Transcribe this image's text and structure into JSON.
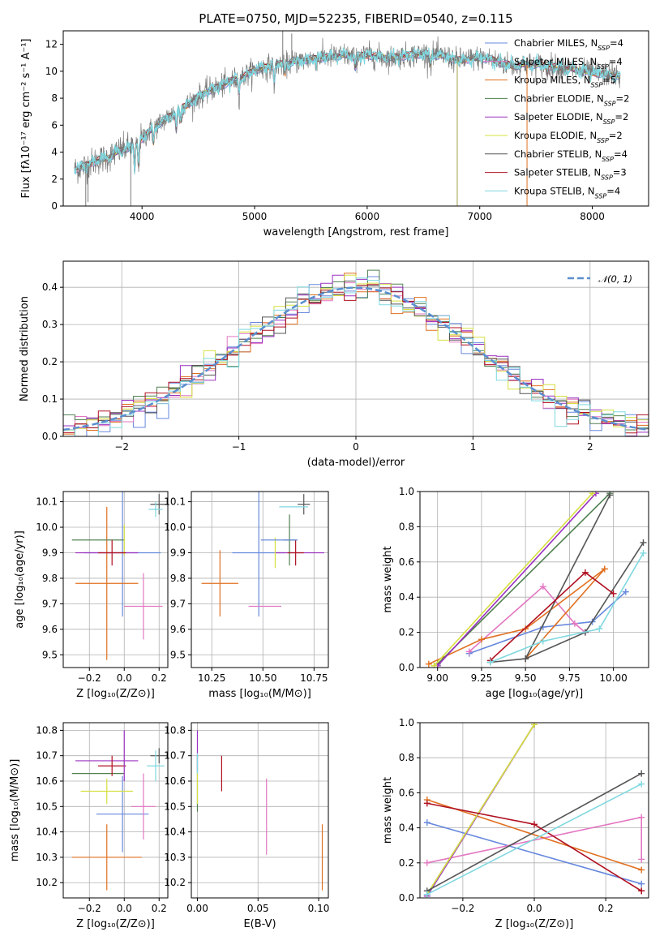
{
  "colors": {
    "Chabrier MILES": "#6688dd",
    "Salpeter MILES": "#e377c2",
    "Kroupa MILES": "#e07020",
    "Chabrier ELODIE": "#508050",
    "Salpeter ELODIE": "#9b30c0",
    "Kroupa ELODIE": "#d6e040",
    "Chabrier STELIB": "#555555",
    "Salpeter STELIB": "#b01020",
    "Kroupa STELIB": "#7fd8e0",
    "normal": "#5b8fd0"
  },
  "chart_data": [
    {
      "id": "spectrum",
      "type": "line",
      "title": "PLATE=0750, MJD=52235, FIBERID=0540, z=0.115",
      "xlabel": "wavelength [Angstrom, rest frame]",
      "ylabel": "Flux [fλ10⁻¹⁷ erg cm⁻² s⁻¹ A⁻¹]",
      "xlim": [
        3300,
        8500
      ],
      "ylim": [
        0,
        13
      ],
      "xticks": [
        "4000",
        "5000",
        "6000",
        "7000",
        "8000"
      ],
      "yticks": [
        "0",
        "2",
        "4",
        "6",
        "8",
        "10",
        "12"
      ],
      "legend_position": "right",
      "legend": [
        {
          "label": "Chabrier MILES, N",
          "sub": "SSP",
          "eq": "=4",
          "color_key": "Chabrier MILES"
        },
        {
          "label": "Salpeter MILES, N",
          "sub": "SSP",
          "eq": "=4",
          "color_key": "Salpeter MILES"
        },
        {
          "label": "Kroupa MILES, N",
          "sub": "SSP",
          "eq": "=5",
          "color_key": "Kroupa MILES"
        },
        {
          "label": "Chabrier ELODIE, N",
          "sub": "SSP",
          "eq": "=2",
          "color_key": "Chabrier ELODIE"
        },
        {
          "label": "Salpeter ELODIE, N",
          "sub": "SSP",
          "eq": "=2",
          "color_key": "Salpeter ELODIE"
        },
        {
          "label": "Kroupa ELODIE, N",
          "sub": "SSP",
          "eq": "=2",
          "color_key": "Kroupa ELODIE"
        },
        {
          "label": "Chabrier STELIB, N",
          "sub": "SSP",
          "eq": "=4",
          "color_key": "Chabrier STELIB"
        },
        {
          "label": "Salpeter STELIB, N",
          "sub": "SSP",
          "eq": "=3",
          "color_key": "Salpeter STELIB"
        },
        {
          "label": "Kroupa STELIB, N",
          "sub": "SSP",
          "eq": "=4",
          "color_key": "Kroupa STELIB"
        }
      ],
      "continuum": [
        [
          3400,
          2.7
        ],
        [
          3500,
          3.0
        ],
        [
          3600,
          3.4
        ],
        [
          3700,
          3.6
        ],
        [
          3800,
          4.1
        ],
        [
          3900,
          4.4
        ],
        [
          4000,
          5.0
        ],
        [
          4100,
          5.8
        ],
        [
          4200,
          6.4
        ],
        [
          4300,
          7.0
        ],
        [
          4400,
          7.5
        ],
        [
          4500,
          8.1
        ],
        [
          4600,
          8.6
        ],
        [
          4700,
          8.9
        ],
        [
          4800,
          9.3
        ],
        [
          4900,
          9.6
        ],
        [
          5000,
          10.1
        ],
        [
          5100,
          10.3
        ],
        [
          5200,
          10.5
        ],
        [
          5300,
          10.6
        ],
        [
          5400,
          10.8
        ],
        [
          5500,
          10.9
        ],
        [
          5600,
          11.0
        ],
        [
          5700,
          11.1
        ],
        [
          5800,
          11.2
        ],
        [
          5900,
          11.1
        ],
        [
          6000,
          11.2
        ],
        [
          6100,
          11.1
        ],
        [
          6200,
          11.0
        ],
        [
          6300,
          11.1
        ],
        [
          6400,
          11.2
        ],
        [
          6500,
          11.3
        ],
        [
          6600,
          11.2
        ],
        [
          6700,
          11.1
        ],
        [
          6800,
          10.8
        ],
        [
          6900,
          10.9
        ],
        [
          7000,
          11.0
        ],
        [
          7100,
          10.9
        ],
        [
          7200,
          10.6
        ],
        [
          7300,
          10.4
        ],
        [
          7400,
          10.5
        ],
        [
          7500,
          10.5
        ],
        [
          7600,
          10.4
        ],
        [
          7700,
          10.3
        ],
        [
          7800,
          10.2
        ],
        [
          7900,
          10.0
        ],
        [
          8000,
          9.9
        ],
        [
          8100,
          9.8
        ],
        [
          8200,
          9.7
        ],
        [
          8250,
          9.6
        ]
      ],
      "absorption_lines": [
        [
          3934,
          2.2
        ],
        [
          3969,
          2.0
        ],
        [
          4102,
          1.2
        ],
        [
          4304,
          1.5
        ],
        [
          4341,
          1.0
        ],
        [
          4861,
          1.2
        ],
        [
          5175,
          1.4
        ],
        [
          5270,
          0.8
        ],
        [
          5895,
          0.9
        ],
        [
          6563,
          0.8
        ],
        [
          7600,
          0.6
        ]
      ],
      "spikes": [
        [
          3500,
          0.0
        ],
        [
          3520,
          0.3
        ],
        [
          3900,
          0.0
        ],
        [
          5250,
          13.0
        ],
        [
          5330,
          12.8
        ],
        [
          6800,
          0.0
        ],
        [
          7420,
          0.0
        ]
      ]
    },
    {
      "id": "residuals",
      "type": "histogram",
      "xlabel": "(data-model)/error",
      "ylabel": "Normed distribution",
      "xlim": [
        -2.5,
        2.5
      ],
      "ylim": [
        0,
        0.47
      ],
      "xticks": [
        "−2",
        "−1",
        "0",
        "1",
        "2"
      ],
      "xtick_values": [
        -2,
        -1,
        0,
        1,
        2
      ],
      "yticks": [
        "0.0",
        "0.1",
        "0.2",
        "0.3",
        "0.4"
      ],
      "ytick_values": [
        0,
        0.1,
        0.2,
        0.3,
        0.4
      ],
      "grid": true,
      "legend": {
        "label": "𝒩(0, 1)",
        "position": "top-right"
      },
      "bin_width": 0.1
    },
    {
      "id": "age-Z",
      "type": "errorbar",
      "xlabel": "Z [log₁₀(Z/Z⊙)]",
      "ylabel": "age  [log₁₀(age/yr)]",
      "xlim": [
        -0.35,
        0.25
      ],
      "ylim": [
        9.45,
        10.14
      ],
      "xticks": [
        "−0.2",
        "0.0",
        "0.2"
      ],
      "xtick_values": [
        -0.2,
        0,
        0.2
      ],
      "yticks": [
        "9.5",
        "9.6",
        "9.7",
        "9.8",
        "9.9",
        "10.0",
        "10.1"
      ],
      "ytick_values": [
        9.5,
        9.6,
        9.7,
        9.8,
        9.9,
        10.0,
        10.1
      ],
      "grid": true,
      "points": [
        {
          "k": "Chabrier MILES",
          "x": -0.01,
          "y": 9.9,
          "xe": 0.22,
          "ye": 0.25
        },
        {
          "k": "Salpeter MILES",
          "x": 0.11,
          "y": 9.69,
          "xe": 0.11,
          "ye": 0.13
        },
        {
          "k": "Kroupa MILES",
          "x": -0.1,
          "y": 9.78,
          "xe": 0.18,
          "ye": 0.3
        },
        {
          "k": "Chabrier ELODIE",
          "x": -0.15,
          "y": 9.95,
          "xe": 0.15,
          "ye": 0.0
        },
        {
          "k": "Salpeter ELODIE",
          "x": -0.1,
          "y": 9.9,
          "xe": 0.18,
          "ye": 0.0
        },
        {
          "k": "Kroupa ELODIE",
          "x": 0.0,
          "y": 9.95,
          "xe": 0.0,
          "ye": 0.06
        },
        {
          "k": "Chabrier STELIB",
          "x": 0.2,
          "y": 10.09,
          "xe": 0.05,
          "ye": 0.04
        },
        {
          "k": "Salpeter STELIB",
          "x": -0.07,
          "y": 9.9,
          "xe": 0.08,
          "ye": 0.05
        },
        {
          "k": "Kroupa STELIB",
          "x": 0.18,
          "y": 10.07,
          "xe": 0.04,
          "ye": 0.03
        }
      ]
    },
    {
      "id": "age-mass",
      "type": "errorbar",
      "xlabel": "mass [log₁₀(M/M⊙)]",
      "ylabel": "",
      "xlim": [
        10.15,
        10.82
      ],
      "ylim": [
        9.45,
        10.14
      ],
      "xticks": [
        "10.25",
        "10.50",
        "10.75"
      ],
      "xtick_values": [
        10.25,
        10.5,
        10.75
      ],
      "yticks": [
        "9.5",
        "9.6",
        "9.7",
        "9.8",
        "9.9",
        "10.0",
        "10.1"
      ],
      "ytick_values": [
        9.5,
        9.6,
        9.7,
        9.8,
        9.9,
        10.0,
        10.1
      ],
      "grid": true,
      "points": [
        {
          "k": "Chabrier MILES",
          "x": 10.48,
          "y": 9.9,
          "xe": 0.13,
          "ye": 0.25
        },
        {
          "k": "Salpeter MILES",
          "x": 10.51,
          "y": 9.69,
          "xe": 0.08,
          "ye": 0.0
        },
        {
          "k": "Kroupa MILES",
          "x": 10.29,
          "y": 9.78,
          "xe": 0.09,
          "ye": 0.13
        },
        {
          "k": "Chabrier ELODIE",
          "x": 10.63,
          "y": 9.95,
          "xe": 0.03,
          "ye": 0.1
        },
        {
          "k": "Salpeter ELODIE",
          "x": 10.68,
          "y": 9.9,
          "xe": 0.12,
          "ye": 0.0
        },
        {
          "k": "Kroupa ELODIE",
          "x": 10.56,
          "y": 9.9,
          "xe": 0.0,
          "ye": 0.06
        },
        {
          "k": "Chabrier STELIB",
          "x": 10.7,
          "y": 10.09,
          "xe": 0.03,
          "ye": 0.04
        },
        {
          "k": "Salpeter STELIB",
          "x": 10.66,
          "y": 9.9,
          "xe": 0.04,
          "ye": 0.05
        },
        {
          "k": "Kroupa STELIB",
          "x": 10.65,
          "y": 10.08,
          "xe": 0.07,
          "ye": 0.0
        },
        {
          "k": "Chabrier MILES",
          "x": 10.58,
          "y": 9.95,
          "xe": 0.09,
          "ye": 0.0
        }
      ]
    },
    {
      "id": "weight-age",
      "type": "line",
      "xlabel": "age  [log₁₀(age/yr)]",
      "ylabel": "mass weight",
      "xlim": [
        8.9,
        10.2
      ],
      "ylim": [
        0,
        1.0
      ],
      "xticks": [
        "9.00",
        "9.25",
        "9.50",
        "9.75",
        "10.00"
      ],
      "xtick_values": [
        9.0,
        9.25,
        9.5,
        9.75,
        10.0
      ],
      "yticks": [
        "0.0",
        "0.2",
        "0.4",
        "0.6",
        "0.8",
        "1.0"
      ],
      "ytick_values": [
        0,
        0.2,
        0.4,
        0.6,
        0.8,
        1.0
      ],
      "grid": true,
      "series": [
        {
          "k": "Chabrier MILES",
          "x": [
            9.18,
            9.6,
            9.88,
            10.07
          ],
          "y": [
            0.08,
            0.23,
            0.26,
            0.43
          ]
        },
        {
          "k": "Salpeter MILES",
          "x": [
            9.18,
            9.6,
            9.78,
            9.84
          ],
          "y": [
            0.09,
            0.46,
            0.25,
            0.2
          ]
        },
        {
          "k": "Kroupa MILES",
          "x": [
            8.95,
            9.25,
            9.5,
            9.95
          ],
          "y": [
            0.02,
            0.16,
            0.22,
            0.56
          ],
          "x2": [
            9.5,
            9.95
          ],
          "y2": [
            0.05,
            0.56
          ]
        },
        {
          "k": "Chabrier ELODIE",
          "x": [
            9.0,
            9.98
          ],
          "y": [
            0.02,
            0.99
          ]
        },
        {
          "k": "Salpeter ELODIE",
          "x": [
            9.0,
            9.9
          ],
          "y": [
            0.01,
            0.99
          ]
        },
        {
          "k": "Kroupa ELODIE",
          "x": [
            8.98,
            9.88
          ],
          "y": [
            0.01,
            0.99
          ]
        },
        {
          "k": "Chabrier STELIB",
          "x": [
            9.3,
            9.5,
            9.84,
            10.17
          ],
          "y": [
            0.03,
            0.05,
            0.2,
            0.71
          ],
          "x2": [
            9.5,
            9.98
          ],
          "y2": [
            0.05,
            0.98
          ]
        },
        {
          "k": "Salpeter STELIB",
          "x": [
            9.3,
            9.84,
            10.0
          ],
          "y": [
            0.04,
            0.54,
            0.42
          ]
        },
        {
          "k": "Kroupa STELIB",
          "x": [
            9.3,
            9.6,
            9.92,
            10.17
          ],
          "y": [
            0.03,
            0.15,
            0.22,
            0.65
          ]
        }
      ]
    },
    {
      "id": "mass-Z",
      "type": "errorbar",
      "xlabel": "Z [log₁₀(Z/Z⊙)]",
      "ylabel": "mass [log₁₀(M/M⊙)]",
      "xlim": [
        -0.35,
        0.25
      ],
      "ylim": [
        10.14,
        10.83
      ],
      "xticks": [
        "−0.2",
        "0.0",
        "0.2"
      ],
      "xtick_values": [
        -0.2,
        0,
        0.2
      ],
      "yticks": [
        "10.2",
        "10.3",
        "10.4",
        "10.5",
        "10.6",
        "10.7",
        "10.8"
      ],
      "ytick_values": [
        10.2,
        10.3,
        10.4,
        10.5,
        10.6,
        10.7,
        10.8
      ],
      "grid": true,
      "points": [
        {
          "k": "Chabrier MILES",
          "x": -0.01,
          "y": 10.47,
          "xe": 0.15,
          "ye": 0.15
        },
        {
          "k": "Salpeter MILES",
          "x": 0.11,
          "y": 10.5,
          "xe": 0.07,
          "ye": 0.13
        },
        {
          "k": "Kroupa MILES",
          "x": -0.1,
          "y": 10.3,
          "xe": 0.2,
          "ye": 0.13
        },
        {
          "k": "Chabrier ELODIE",
          "x": -0.15,
          "y": 10.63,
          "xe": 0.15,
          "ye": 0.0
        },
        {
          "k": "Salpeter ELODIE",
          "x": -0.1,
          "y": 10.68,
          "xe": 0.18,
          "ye": 0.0
        },
        {
          "k": "Kroupa ELODIE",
          "x": -0.1,
          "y": 10.56,
          "xe": 0.15,
          "ye": 0.05
        },
        {
          "k": "Chabrier STELIB",
          "x": 0.2,
          "y": 10.7,
          "xe": 0.05,
          "ye": 0.03
        },
        {
          "k": "Salpeter STELIB",
          "x": -0.07,
          "y": 10.66,
          "xe": 0.08,
          "ye": 0.04
        },
        {
          "k": "Kroupa STELIB",
          "x": 0.18,
          "y": 10.66,
          "xe": 0.05,
          "ye": 0.06
        },
        {
          "k": "Salpeter ELODIE",
          "x": 0.0,
          "y": 10.7,
          "xe": 0.0,
          "ye": 0.1
        }
      ]
    },
    {
      "id": "mass-ebv",
      "type": "errorbar",
      "xlabel": "E(B-V)",
      "ylabel": "",
      "xlim": [
        -0.005,
        0.108
      ],
      "ylim": [
        10.14,
        10.83
      ],
      "xticks": [
        "0.00",
        "0.05",
        "0.10"
      ],
      "xtick_values": [
        0,
        0.05,
        0.1
      ],
      "yticks": [
        "10.2",
        "10.3",
        "10.4",
        "10.5",
        "10.6",
        "10.7",
        "10.8"
      ],
      "ytick_values": [
        10.2,
        10.3,
        10.4,
        10.5,
        10.6,
        10.7,
        10.8
      ],
      "grid": true,
      "points": [
        {
          "k": "Chabrier ELODIE",
          "x": 0.0,
          "y": 10.59,
          "xe": 0.0,
          "ye": 0.11
        },
        {
          "k": "Salpeter ELODIE",
          "x": 0.0,
          "y": 10.72,
          "xe": 0.0,
          "ye": 0.08
        },
        {
          "k": "Kroupa ELODIE",
          "x": 0.0,
          "y": 10.57,
          "xe": 0.0,
          "ye": 0.06
        },
        {
          "k": "Kroupa STELIB",
          "x": 0.0,
          "y": 10.67,
          "xe": 0.0,
          "ye": 0.04
        },
        {
          "k": "Salpeter STELIB",
          "x": 0.02,
          "y": 10.63,
          "xe": 0.0,
          "ye": 0.07
        },
        {
          "k": "Salpeter MILES",
          "x": 0.057,
          "y": 10.46,
          "xe": 0.0,
          "ye": 0.15
        },
        {
          "k": "Kroupa MILES",
          "x": 0.103,
          "y": 10.3,
          "xe": 0.0,
          "ye": 0.13
        }
      ]
    },
    {
      "id": "weight-Z",
      "type": "line",
      "xlabel": "Z [log₁₀(Z/Z⊙)]",
      "ylabel": "mass weight",
      "xlim": [
        -0.32,
        0.32
      ],
      "ylim": [
        0,
        1.0
      ],
      "xticks": [
        "−0.2",
        "0.0",
        "0.2"
      ],
      "xtick_values": [
        -0.2,
        0,
        0.2
      ],
      "yticks": [
        "0.0",
        "0.2",
        "0.4",
        "0.6",
        "0.8",
        "1.0"
      ],
      "ytick_values": [
        0,
        0.2,
        0.4,
        0.6,
        0.8,
        1.0
      ],
      "grid": true,
      "series": [
        {
          "k": "Chabrier MILES",
          "x": [
            -0.3,
            0.3
          ],
          "y": [
            0.43,
            0.08
          ]
        },
        {
          "k": "Salpeter MILES",
          "x": [
            -0.3,
            0.3,
            0.3
          ],
          "y": [
            0.2,
            0.46,
            0.22
          ]
        },
        {
          "k": "Kroupa MILES",
          "x": [
            -0.3,
            0.3
          ],
          "y": [
            0.56,
            0.16
          ]
        },
        {
          "k": "Chabrier ELODIE",
          "x": [
            -0.3,
            0.0
          ],
          "y": [
            0.02,
            0.99
          ]
        },
        {
          "k": "Salpeter ELODIE",
          "x": [
            -0.3,
            0.0
          ],
          "y": [
            0.01,
            0.99
          ]
        },
        {
          "k": "Kroupa ELODIE",
          "x": [
            -0.3,
            0.0
          ],
          "y": [
            0.02,
            0.99
          ]
        },
        {
          "k": "Chabrier STELIB",
          "x": [
            -0.3,
            0.3
          ],
          "y": [
            0.04,
            0.71
          ]
        },
        {
          "k": "Salpeter STELIB",
          "x": [
            -0.3,
            0.0,
            0.3,
            0.3
          ],
          "y": [
            0.54,
            0.42,
            0.04,
            0.04
          ]
        },
        {
          "k": "Kroupa STELIB",
          "x": [
            -0.3,
            0.3
          ],
          "y": [
            0.02,
            0.65
          ]
        }
      ]
    }
  ]
}
